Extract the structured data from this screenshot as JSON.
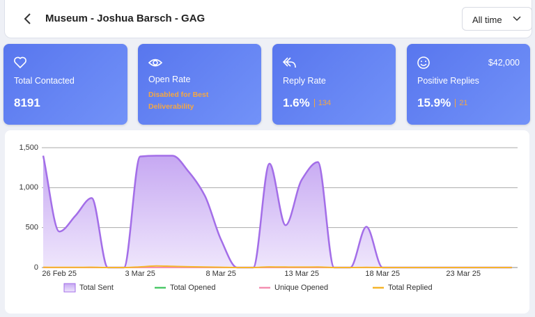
{
  "header": {
    "title": "Museum - Joshua Barsch - GAG",
    "filter": "All time"
  },
  "cards": [
    {
      "label": "Total Contacted",
      "value": "8191"
    },
    {
      "label": "Open Rate",
      "note": "Disabled for Best Deliverability"
    },
    {
      "label": "Reply Rate",
      "value": "1.6%",
      "count": "134"
    },
    {
      "label": "Positive Replies",
      "value": "15.9%",
      "count": "21",
      "amount": "$42,000"
    }
  ],
  "chart_data": {
    "type": "area",
    "categories": [
      null,
      "26 Feb 25",
      null,
      null,
      null,
      null,
      "3 Mar 25",
      null,
      null,
      null,
      null,
      "8 Mar 25",
      null,
      null,
      null,
      null,
      "13 Mar 25",
      null,
      null,
      null,
      null,
      "18 Mar 25",
      null,
      null,
      null,
      null,
      "23 Mar 25",
      null,
      null,
      null
    ],
    "series": [
      {
        "name": "Total Sent",
        "color": "#a36ee8",
        "fill": true,
        "values": [
          1400,
          450,
          650,
          870,
          0,
          0,
          1390,
          1400,
          1400,
          1200,
          900,
          350,
          0,
          0,
          1300,
          530,
          1100,
          1320,
          0,
          0,
          510,
          0,
          0,
          0,
          0,
          0,
          0,
          0,
          0,
          0
        ]
      },
      {
        "name": "Total Opened",
        "color": "#4cc868",
        "fill": false,
        "values": [
          0,
          0,
          0,
          0,
          0,
          0,
          0,
          0,
          0,
          0,
          0,
          0,
          0,
          0,
          0,
          0,
          0,
          0,
          0,
          0,
          0,
          0,
          0,
          0,
          0,
          0,
          0,
          0,
          0,
          0
        ]
      },
      {
        "name": "Unique Opened",
        "color": "#f48fb1",
        "fill": false,
        "values": [
          0,
          0,
          0,
          0,
          0,
          0,
          0,
          0,
          0,
          0,
          0,
          0,
          0,
          0,
          0,
          0,
          0,
          0,
          0,
          0,
          0,
          0,
          0,
          0,
          0,
          0,
          0,
          0,
          0,
          0
        ]
      },
      {
        "name": "Total Replied",
        "color": "#f5b52a",
        "fill": false,
        "values": [
          3,
          2,
          2,
          3,
          0,
          0,
          8,
          20,
          15,
          10,
          6,
          3,
          0,
          0,
          8,
          6,
          5,
          6,
          0,
          0,
          2,
          0,
          0,
          0,
          0,
          0,
          0,
          0,
          0,
          0
        ]
      }
    ],
    "ylim": [
      0,
      1500
    ],
    "yticks": [
      0,
      500,
      {
        "value": 1000,
        "label": "1,000"
      },
      {
        "value": 1500,
        "label": "1,500"
      }
    ],
    "grid": true,
    "legend": "bottom"
  }
}
